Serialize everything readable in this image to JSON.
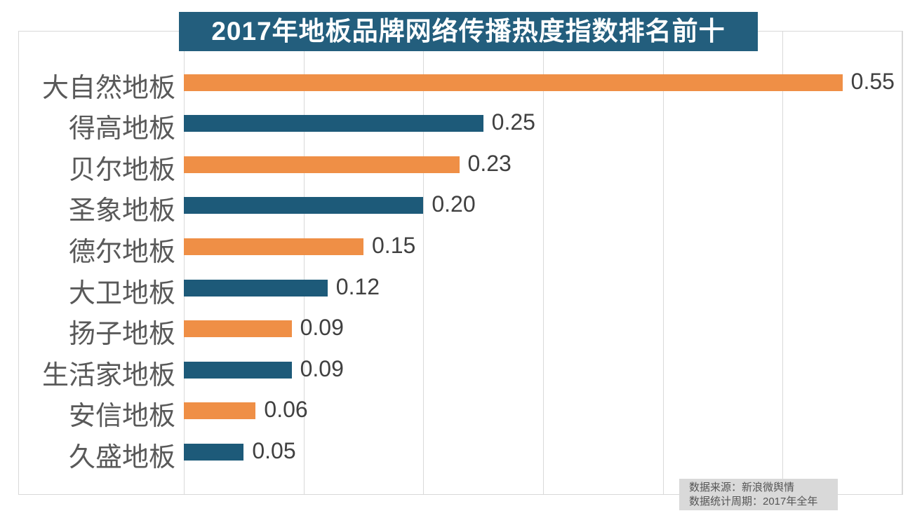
{
  "chart_data": {
    "type": "bar",
    "orientation": "horizontal",
    "title": "2017年地板品牌网络传播热度指数排名前十",
    "categories": [
      "大自然地板",
      "得高地板",
      "贝尔地板",
      "圣象地板",
      "德尔地板",
      "大卫地板",
      "扬子地板",
      "生活家地板",
      "安信地板",
      "久盛地板"
    ],
    "values": [
      0.55,
      0.25,
      0.23,
      0.2,
      0.15,
      0.12,
      0.09,
      0.09,
      0.06,
      0.05
    ],
    "value_labels": [
      "0.55",
      "0.25",
      "0.23",
      "0.20",
      "0.15",
      "0.12",
      "0.09",
      "0.09",
      "0.06",
      "0.05"
    ],
    "xlim": [
      0,
      0.6
    ],
    "grid": true,
    "gridline_step": 0.1,
    "legend_position": "none",
    "bar_color_pattern": [
      "orange",
      "blue"
    ]
  },
  "source": {
    "line1": "数据来源：新浪微舆情",
    "line2": "数据统计周期：2017年全年"
  },
  "colors": {
    "orange": "#ef8f46",
    "blue": "#1d5a79",
    "title_bg": "#235e7d",
    "title_text": "#ffffff",
    "grid": "#d9d9d9",
    "frame_border": "#d9d9d9",
    "category_label": "#595959",
    "value_label": "#404040",
    "source_bg": "#d9d9d9",
    "source_text": "#555555"
  }
}
